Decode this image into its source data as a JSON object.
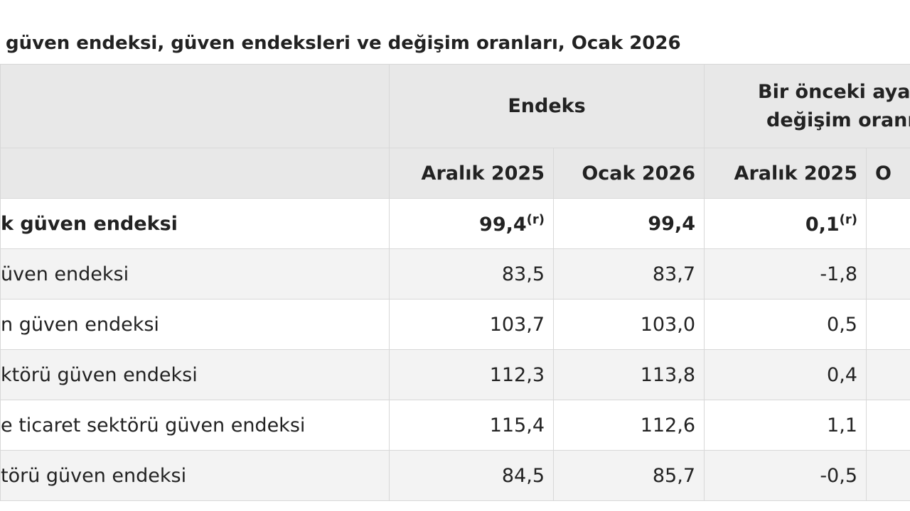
{
  "title": "güven endeksi, güven endeksleri ve değişim oranları, Ocak 2026",
  "table": {
    "header": {
      "group_1": "Endeks",
      "group_2": [
        "Bir önceki aya",
        "değişim oranı"
      ],
      "periods": [
        "Aralık 2025",
        "Ocak 2026",
        "Aralık 2025",
        "O"
      ]
    },
    "rows": [
      {
        "label": "k güven endeksi",
        "bold": true,
        "cells": [
          {
            "text": "99,4",
            "note": "(r)"
          },
          {
            "text": "99,4"
          },
          {
            "text": "0,1",
            "note": "(r)"
          }
        ]
      },
      {
        "label": "üven endeksi",
        "cells": [
          {
            "text": "83,5"
          },
          {
            "text": "83,7"
          },
          {
            "text": "-1,8"
          }
        ]
      },
      {
        "label": "n güven endeksi",
        "cells": [
          {
            "text": "103,7"
          },
          {
            "text": "103,0"
          },
          {
            "text": "0,5"
          }
        ]
      },
      {
        "label": "ktörü güven endeksi",
        "cells": [
          {
            "text": "112,3"
          },
          {
            "text": "113,8"
          },
          {
            "text": "0,4"
          }
        ]
      },
      {
        "label": "e ticaret sektörü güven endeksi",
        "cells": [
          {
            "text": "115,4"
          },
          {
            "text": "112,6"
          },
          {
            "text": "1,1"
          }
        ]
      },
      {
        "label": "törü güven endeksi",
        "cells": [
          {
            "text": "84,5"
          },
          {
            "text": "85,7"
          },
          {
            "text": "-0,5"
          }
        ]
      }
    ]
  }
}
